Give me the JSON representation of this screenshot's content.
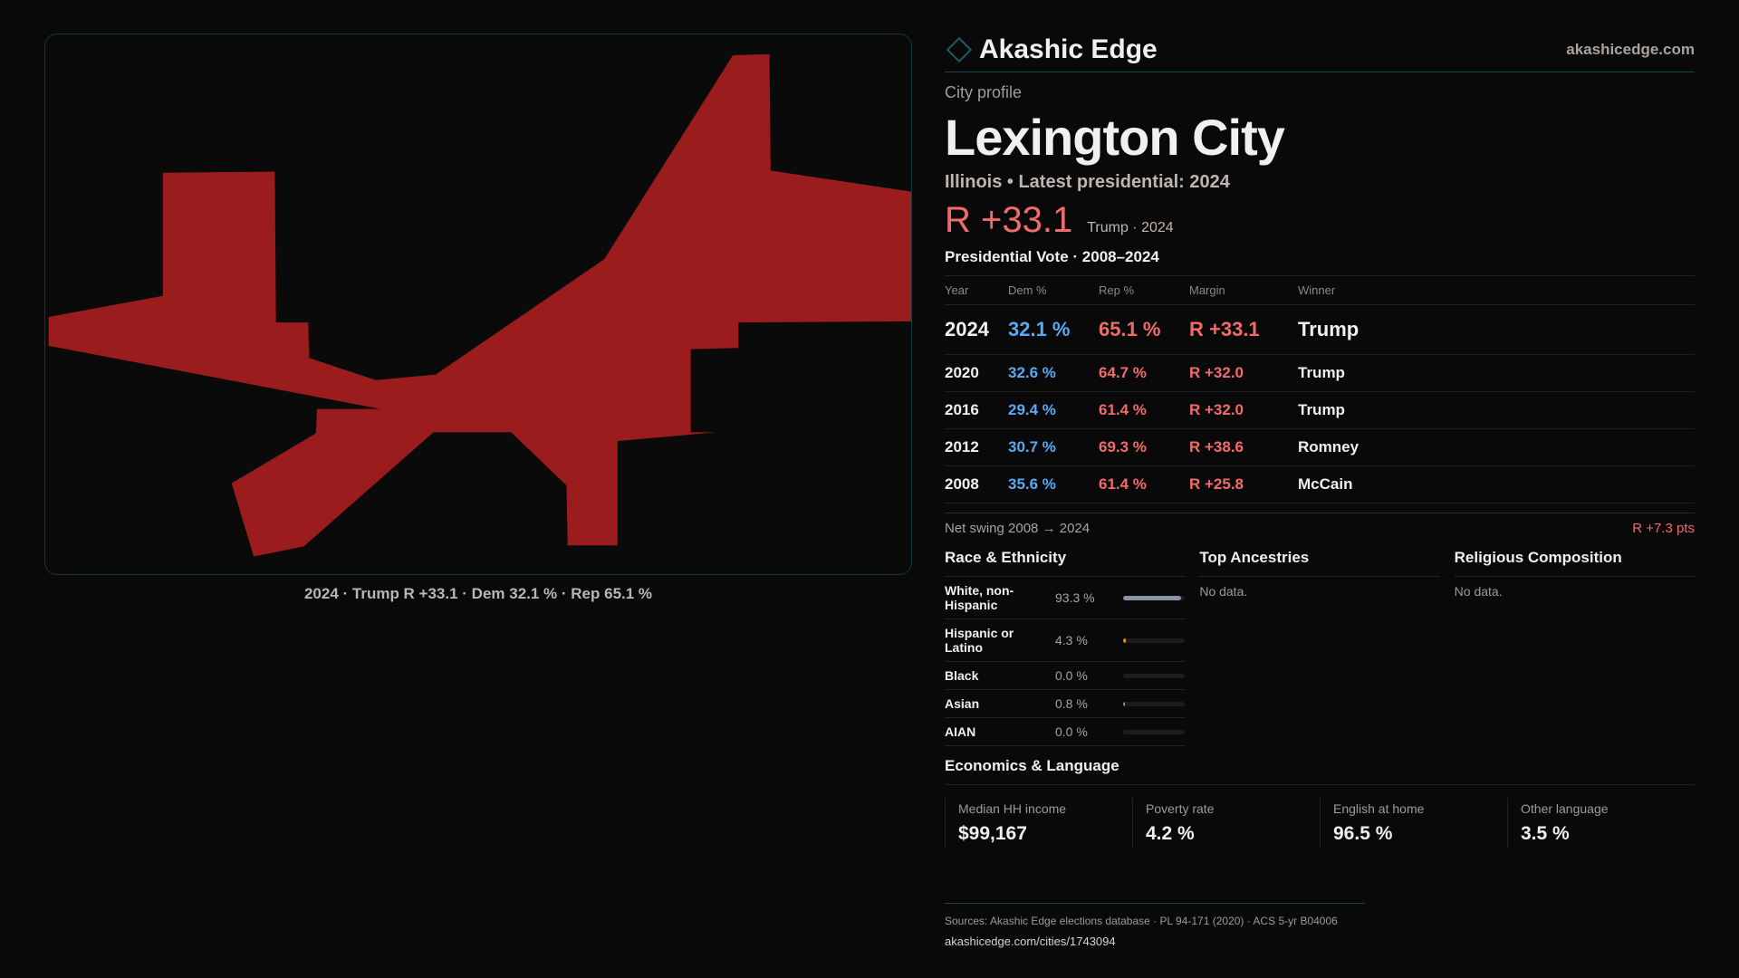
{
  "colors": {
    "map_fill": "#9b1c1c",
    "dem": "#5aa9f5",
    "rep": "#f26b6b",
    "accent": "#1a5d66"
  },
  "map": {
    "caption": "2024 · Trump R +33.1 · Dem 32.1 % · Rep 65.1 %"
  },
  "header": {
    "brand": "Akashic Edge",
    "site": "akashicedge.com",
    "logo_icon": "diamond-icon"
  },
  "profile": {
    "kicker": "City profile",
    "title": "Lexington City",
    "subtitle": "Illinois • Latest presidential: 2024",
    "margin": "R +33.1",
    "margin_note": "Trump · 2024"
  },
  "votes": {
    "heading": "Presidential Vote · 2008–2024",
    "columns": [
      "Year",
      "Dem %",
      "Rep %",
      "Margin",
      "Winner"
    ],
    "rows": [
      {
        "year": "2024",
        "dem": "32.1 %",
        "rep": "65.1 %",
        "margin": "R +33.1",
        "winner": "Trump"
      },
      {
        "year": "2020",
        "dem": "32.6 %",
        "rep": "64.7 %",
        "margin": "R +32.0",
        "winner": "Trump"
      },
      {
        "year": "2016",
        "dem": "29.4 %",
        "rep": "61.4 %",
        "margin": "R +32.0",
        "winner": "Trump"
      },
      {
        "year": "2012",
        "dem": "30.7 %",
        "rep": "69.3 %",
        "margin": "R +38.6",
        "winner": "Romney"
      },
      {
        "year": "2008",
        "dem": "35.6 %",
        "rep": "61.4 %",
        "margin": "R +25.8",
        "winner": "McCain"
      }
    ],
    "swing_label": "Net swing 2008 → 2024",
    "swing_value": "R +7.3 pts"
  },
  "race": {
    "heading": "Race & Ethnicity",
    "rows": [
      {
        "label": "White, non-Hispanic",
        "pct": "93.3 %",
        "value": 93.3,
        "color": "#8a94a6"
      },
      {
        "label": "Hispanic or Latino",
        "pct": "4.3 %",
        "value": 4.3,
        "color": "#e0961c"
      },
      {
        "label": "Black",
        "pct": "0.0 %",
        "value": 0,
        "color": "#8a94a6"
      },
      {
        "label": "Asian",
        "pct": "0.8 %",
        "value": 0.8,
        "color": "#3fb6a8"
      },
      {
        "label": "AIAN",
        "pct": "0.0 %",
        "value": 0,
        "color": "#8a94a6"
      }
    ]
  },
  "ancestries": {
    "heading": "Top Ancestries",
    "empty": "No data."
  },
  "religion": {
    "heading": "Religious Composition",
    "empty": "No data."
  },
  "economics": {
    "heading": "Economics & Language",
    "stats": [
      {
        "label": "Median HH income",
        "value": "$99,167"
      },
      {
        "label": "Poverty rate",
        "value": "4.2 %"
      },
      {
        "label": "English at home",
        "value": "96.5 %"
      },
      {
        "label": "Other language",
        "value": "3.5 %"
      }
    ]
  },
  "footer": {
    "sources": "Sources: Akashic Edge elections database · PL 94-171 (2020) · ACS 5-yr B04006",
    "url": "akashicedge.com/cities/1743094"
  }
}
